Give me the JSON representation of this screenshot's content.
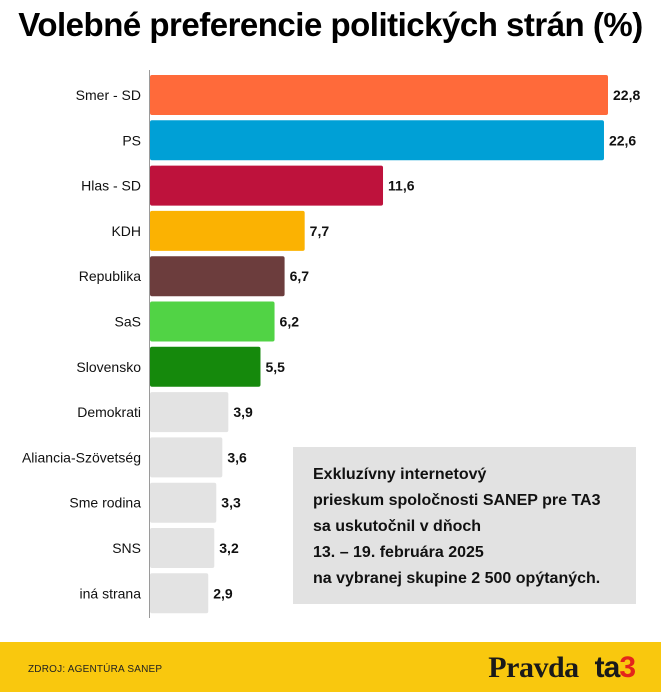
{
  "footer": {
    "source": "ZDROJ: AGENTÚRA SANEP",
    "logo_pravda": "Pravda",
    "logo_ta3_letters": "ta",
    "logo_ta3_number": "3"
  },
  "note": {
    "lines": [
      "Exkluzívny internetový",
      "prieskum spoločnosti SANEP pre TA3",
      "sa uskutočnil v dňoch",
      "13. – 19. februára 2025",
      "na vybranej skupine 2 500 opýtaných."
    ]
  },
  "chart_data": {
    "type": "bar",
    "orientation": "horizontal",
    "title": "Volebné preferencie politických strán (%)",
    "categories": [
      "Smer - SD",
      "PS",
      "Hlas - SD",
      "KDH",
      "Republika",
      "SaS",
      "Slovensko",
      "Demokrati",
      "Aliancia-Szövetség",
      "Sme rodina",
      "SNS",
      "iná strana"
    ],
    "values": [
      22.8,
      22.6,
      11.6,
      7.7,
      6.7,
      6.2,
      5.5,
      3.9,
      3.6,
      3.3,
      3.2,
      2.9
    ],
    "value_labels": [
      "22,8",
      "22,6",
      "11,6",
      "7,7",
      "6,7",
      "6,2",
      "5,5",
      "3,9",
      "3,6",
      "3,3",
      "3,2",
      "2,9"
    ],
    "colors": [
      "#ff6a3a",
      "#00a0d6",
      "#be123c",
      "#fbb202",
      "#6c3d3d",
      "#51d345",
      "#15890c",
      "#e3e3e3",
      "#e3e3e3",
      "#e3e3e3",
      "#e3e3e3",
      "#e3e3e3"
    ],
    "xlim": [
      0,
      22.8
    ],
    "grid": false,
    "legend": "none"
  }
}
